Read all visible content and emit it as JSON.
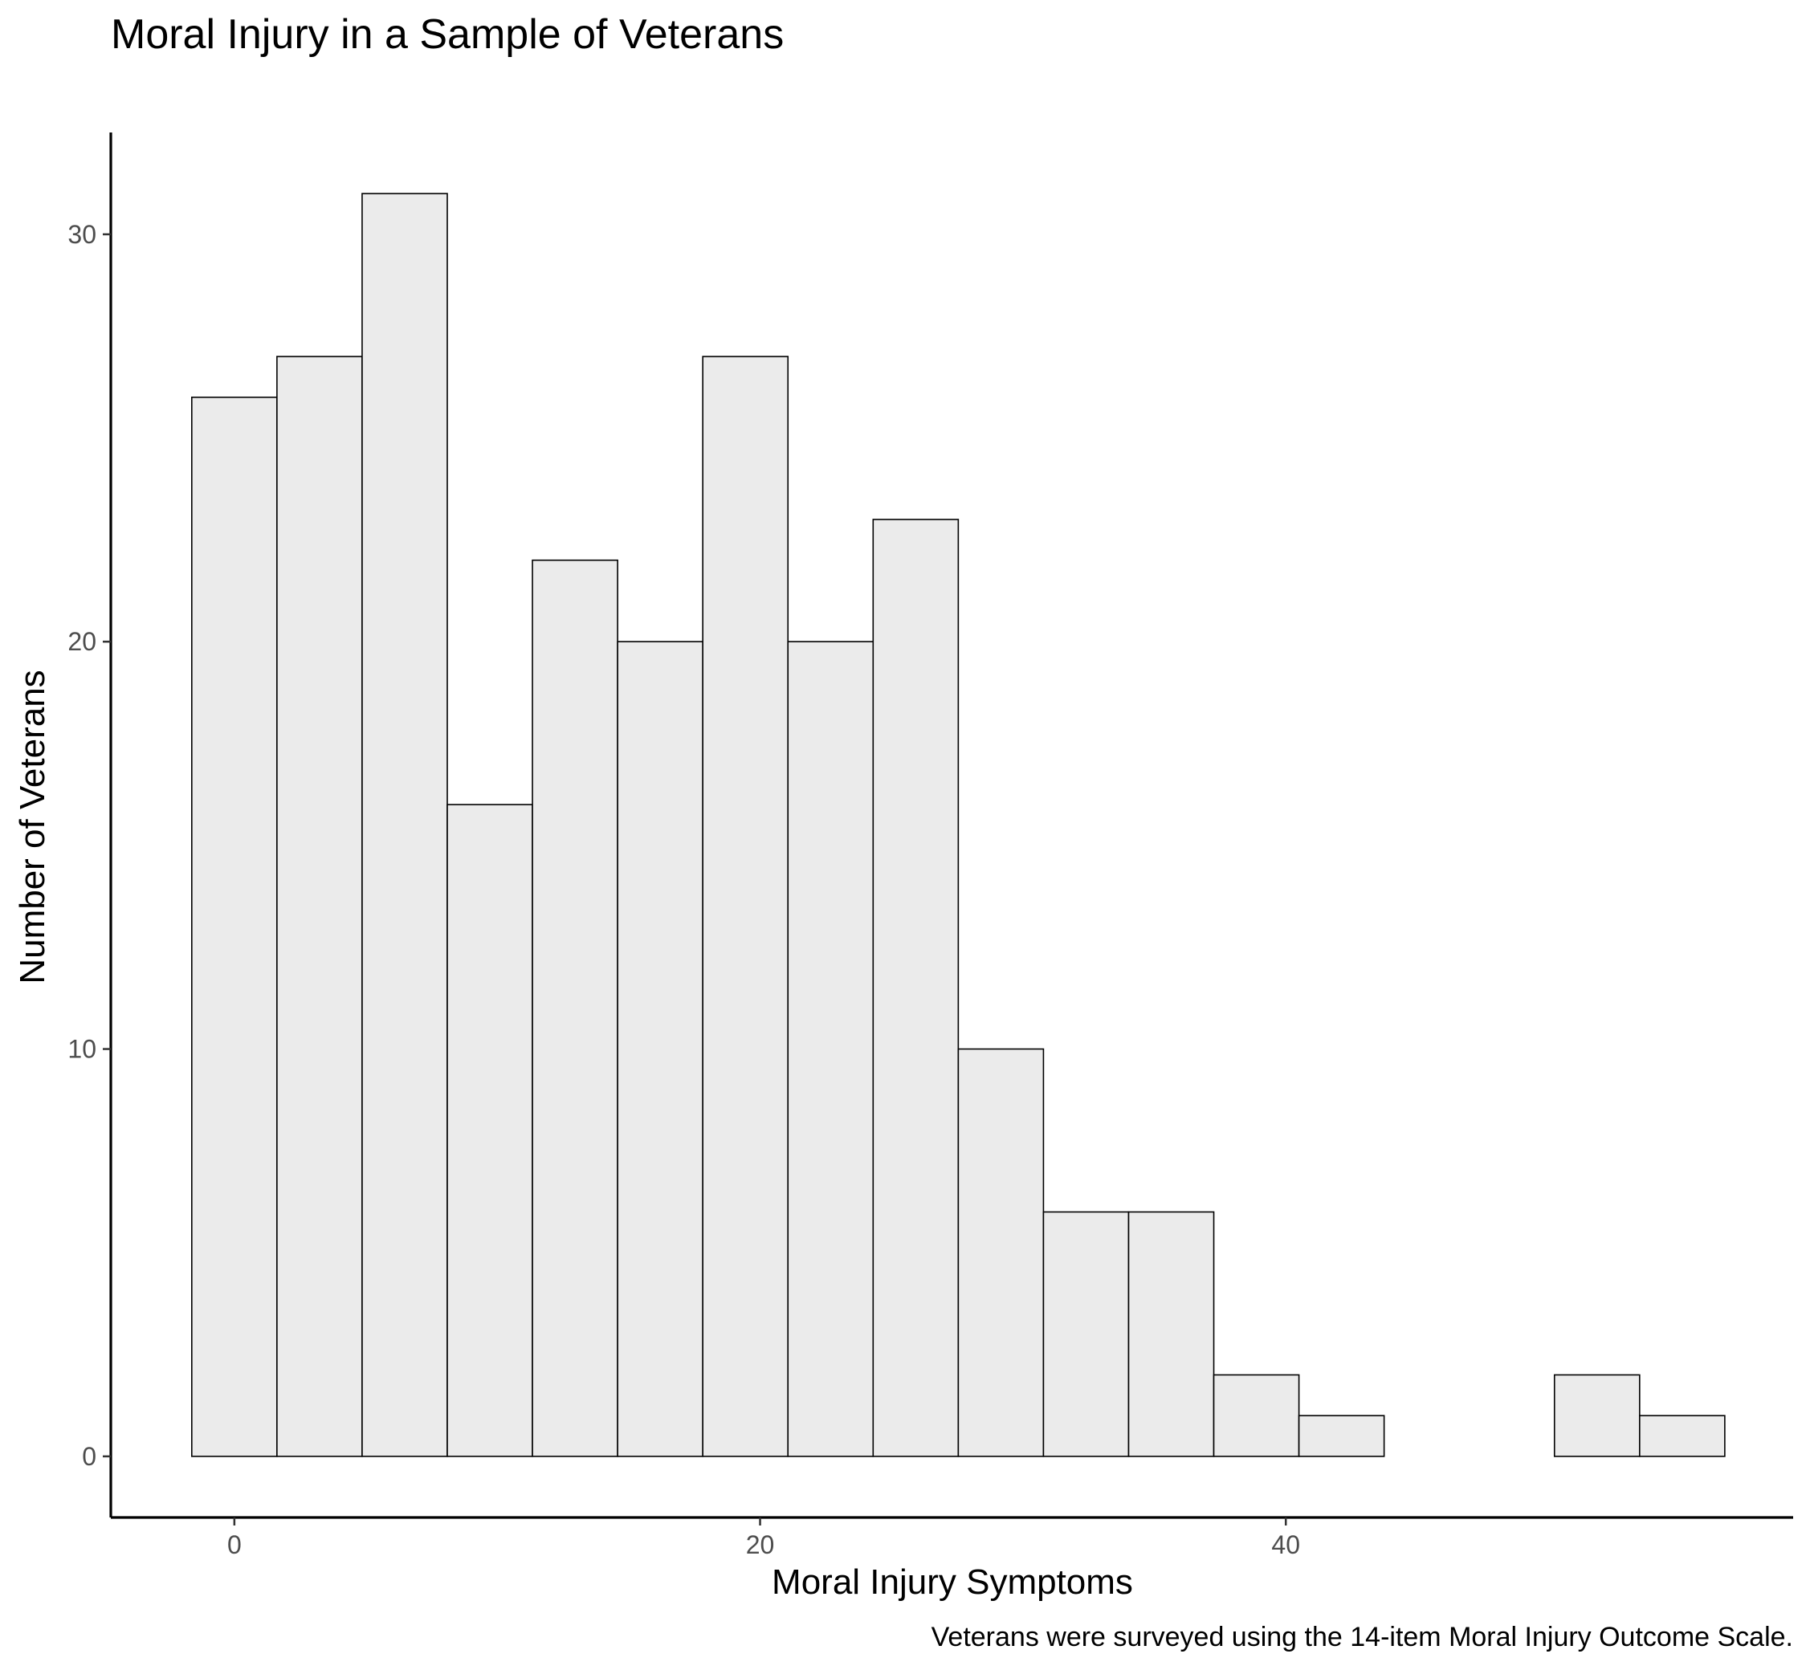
{
  "chart_data": {
    "type": "bar",
    "title": "Moral Injury in a Sample of Veterans",
    "xlabel": "Moral Injury Symptoms",
    "ylabel": "Number of Veterans",
    "caption": "Veterans were surveyed using the 14-item Moral Injury Outcome Scale.",
    "bin_width": 3.24,
    "bin_start": -1.62,
    "counts": [
      26,
      27,
      31,
      16,
      22,
      20,
      27,
      20,
      23,
      10,
      6,
      6,
      2,
      1,
      0,
      0,
      2,
      1
    ],
    "xlim": [
      -4.7,
      59.3
    ],
    "ylim": [
      -1.5,
      32.5
    ],
    "x_ticks": [
      0,
      20,
      40
    ],
    "x_tick_labels": [
      "0",
      "20",
      "40"
    ],
    "y_ticks": [
      0,
      10,
      20,
      30
    ],
    "y_tick_labels": [
      "0",
      "10",
      "20",
      "30"
    ],
    "bar_fill": "#ebebeb",
    "bar_outline": "#000000",
    "grid": false,
    "legend": "none"
  }
}
